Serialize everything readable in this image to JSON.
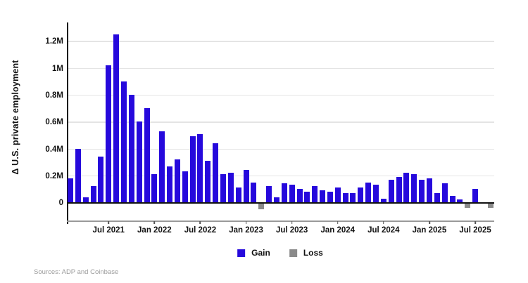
{
  "y_axis": {
    "title": "Δ U.S. private employment",
    "ticks": [
      {
        "label": "0",
        "value": 0
      },
      {
        "label": "0.2M",
        "value": 0.2
      },
      {
        "label": "0.4M",
        "value": 0.4
      },
      {
        "label": "0.6M",
        "value": 0.6
      },
      {
        "label": "0.8M",
        "value": 0.8
      },
      {
        "label": "1M",
        "value": 1.0
      },
      {
        "label": "1.2M",
        "value": 1.2
      }
    ]
  },
  "x_axis": {
    "ticks": [
      {
        "label": "Jul 2021",
        "month_index": 5
      },
      {
        "label": "Jan 2022",
        "month_index": 11
      },
      {
        "label": "Jul 2022",
        "month_index": 17
      },
      {
        "label": "Jan 2023",
        "month_index": 23
      },
      {
        "label": "Jul 2023",
        "month_index": 29
      },
      {
        "label": "Jan 2024",
        "month_index": 35
      },
      {
        "label": "Jul 2024",
        "month_index": 41
      },
      {
        "label": "Jan 2025",
        "month_index": 47
      },
      {
        "label": "Jul 2025",
        "month_index": 53
      }
    ]
  },
  "legend": {
    "gain_label": "Gain",
    "loss_label": "Loss"
  },
  "footer": {
    "source_text": "Sources: ADP and Coinbase"
  },
  "colors": {
    "gain": "#2609dc",
    "loss": "#8a8a8a",
    "gridline": "#e4e4e4",
    "axis": "#111111"
  },
  "chart_data": {
    "type": "bar",
    "title": "",
    "xlabel": "",
    "ylabel": "Δ U.S. private employment",
    "unit": "millions of jobs, monthly change",
    "ylim": [
      -0.1,
      1.34
    ],
    "grid": "horizontal",
    "legend_position": "bottom-center",
    "series_rule": "value >= 0 rendered as blue Gain bar, value < 0 rendered as gray Loss bar",
    "categories": [
      "Feb 2021",
      "Mar 2021",
      "Apr 2021",
      "May 2021",
      "Jun 2021",
      "Jul 2021",
      "Aug 2021",
      "Sep 2021",
      "Oct 2021",
      "Nov 2021",
      "Dec 2021",
      "Jan 2022",
      "Feb 2022",
      "Mar 2022",
      "Apr 2022",
      "May 2022",
      "Jun 2022",
      "Jul 2022",
      "Aug 2022",
      "Sep 2022",
      "Oct 2022",
      "Nov 2022",
      "Dec 2022",
      "Jan 2023",
      "Feb 2023",
      "Mar 2023",
      "Apr 2023",
      "May 2023",
      "Jun 2023",
      "Jul 2023",
      "Aug 2023",
      "Sep 2023",
      "Oct 2023",
      "Nov 2023",
      "Dec 2023",
      "Jan 2024",
      "Feb 2024",
      "Mar 2024",
      "Apr 2024",
      "May 2024",
      "Jun 2024",
      "Jul 2024",
      "Aug 2024",
      "Sep 2024",
      "Oct 2024",
      "Nov 2024",
      "Dec 2024",
      "Jan 2025",
      "Feb 2025",
      "Mar 2025",
      "Apr 2025",
      "May 2025",
      "Jun 2025",
      "Jul 2025",
      "Aug 2025",
      "Sep 2025"
    ],
    "values": [
      0.18,
      0.4,
      0.04,
      0.12,
      0.34,
      1.02,
      1.25,
      0.9,
      0.8,
      0.6,
      0.7,
      0.21,
      0.53,
      0.27,
      0.32,
      0.23,
      0.49,
      0.51,
      0.31,
      0.44,
      0.21,
      0.22,
      0.11,
      0.24,
      0.15,
      -0.04,
      0.12,
      0.04,
      0.14,
      0.13,
      0.1,
      0.08,
      0.12,
      0.09,
      0.08,
      0.11,
      0.07,
      0.07,
      0.11,
      0.15,
      0.13,
      0.03,
      0.17,
      0.19,
      0.22,
      0.21,
      0.17,
      0.18,
      0.07,
      0.14,
      0.05,
      0.02,
      -0.03,
      0.1,
      0.0,
      -0.03
    ]
  }
}
